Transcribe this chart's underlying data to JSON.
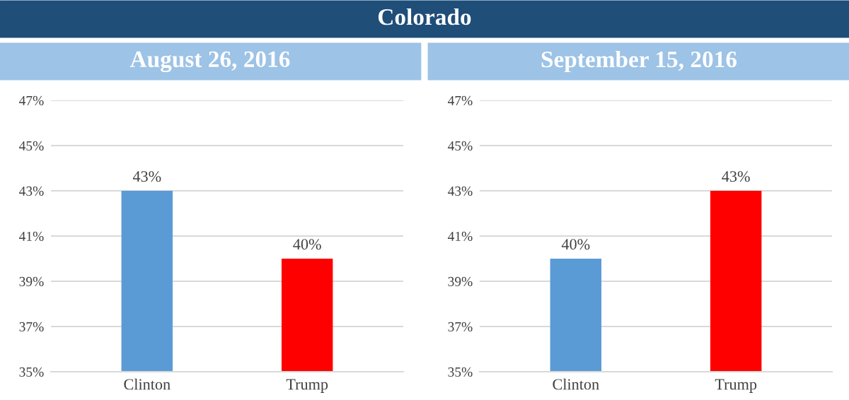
{
  "chart_data": [
    {
      "type": "other",
      "title": "Colorado"
    },
    {
      "type": "bar",
      "title": "August 26, 2016",
      "categories": [
        "Clinton",
        "Trump"
      ],
      "values": [
        43,
        40
      ],
      "colors": [
        "#5b9bd5",
        "#ff0000"
      ],
      "value_labels": [
        "43%",
        "40%"
      ],
      "ylim": [
        35,
        47
      ],
      "yticks": [
        {
          "value": 35,
          "label": "35%"
        },
        {
          "value": 37,
          "label": "37%"
        },
        {
          "value": 39,
          "label": "39%"
        },
        {
          "value": 41,
          "label": "41%"
        },
        {
          "value": 43,
          "label": "43%"
        },
        {
          "value": 45,
          "label": "45%"
        },
        {
          "value": 47,
          "label": "47%"
        }
      ],
      "grid": "y"
    },
    {
      "type": "bar",
      "title": "September 15, 2016",
      "categories": [
        "Clinton",
        "Trump"
      ],
      "values": [
        40,
        43
      ],
      "colors": [
        "#5b9bd5",
        "#ff0000"
      ],
      "value_labels": [
        "40%",
        "43%"
      ],
      "ylim": [
        35,
        47
      ],
      "yticks": [
        {
          "value": 35,
          "label": "35%"
        },
        {
          "value": 37,
          "label": "37%"
        },
        {
          "value": 39,
          "label": "39%"
        },
        {
          "value": 41,
          "label": "41%"
        },
        {
          "value": 43,
          "label": "43%"
        },
        {
          "value": 45,
          "label": "45%"
        },
        {
          "value": 47,
          "label": "47%"
        }
      ],
      "grid": "y"
    }
  ]
}
